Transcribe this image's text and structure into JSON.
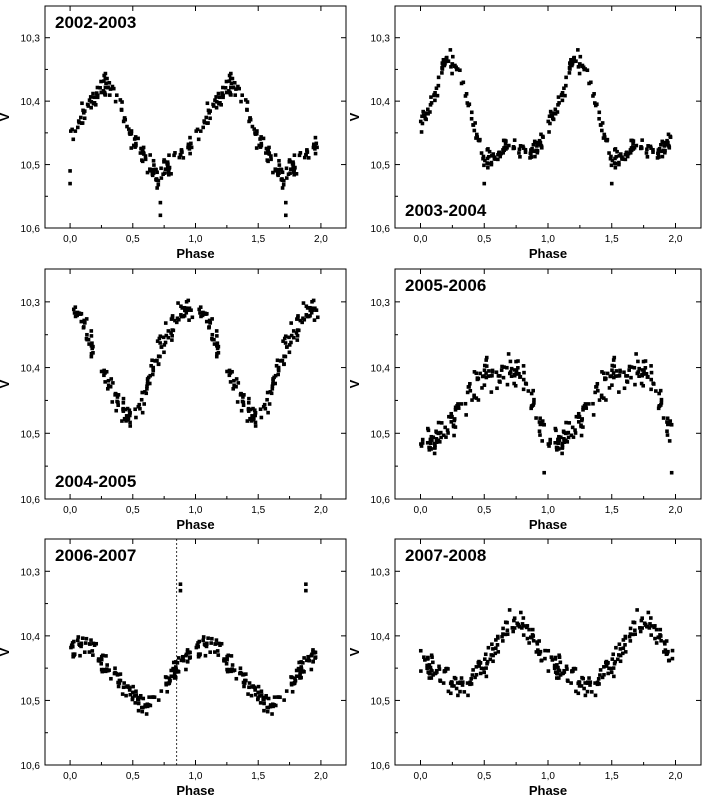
{
  "chart_data": [
    {
      "type": "scatter",
      "title": "2002-2003",
      "xlabel": "Phase",
      "ylabel": "V",
      "xlim": [
        -0.2,
        2.2
      ],
      "ylim": [
        10.6,
        10.25
      ],
      "x_ticks": [
        "0,0",
        "0,5",
        "1,0",
        "1,5",
        "2,0"
      ],
      "y_ticks": [
        "10,3",
        "10,4",
        "10,5",
        "10,6"
      ],
      "curve": [
        [
          0.0,
          10.46
        ],
        [
          0.1,
          10.42
        ],
        [
          0.2,
          10.39
        ],
        [
          0.3,
          10.37
        ],
        [
          0.4,
          10.41
        ],
        [
          0.5,
          10.46
        ],
        [
          0.6,
          10.49
        ],
        [
          0.7,
          10.52
        ],
        [
          0.8,
          10.5
        ],
        [
          0.9,
          10.48
        ],
        [
          1.0,
          10.46
        ]
      ],
      "scatter_amplitude": 0.025,
      "outliers": [
        [
          0.0,
          10.53
        ],
        [
          0.0,
          10.51
        ],
        [
          0.72,
          10.58
        ],
        [
          0.72,
          10.56
        ],
        [
          1.72,
          10.58
        ],
        [
          1.72,
          10.56
        ]
      ],
      "vline": null
    },
    {
      "type": "scatter",
      "title": "2003-2004",
      "xlabel": "Phase",
      "ylabel": "V",
      "xlim": [
        -0.2,
        2.2
      ],
      "ylim": [
        10.6,
        10.25
      ],
      "x_ticks": [
        "0,0",
        "0,5",
        "1,0",
        "1,5",
        "2,0"
      ],
      "y_ticks": [
        "10,3",
        "10,4",
        "10,5",
        "10,6"
      ],
      "curve": [
        [
          0.0,
          10.44
        ],
        [
          0.1,
          10.4
        ],
        [
          0.2,
          10.33
        ],
        [
          0.3,
          10.35
        ],
        [
          0.4,
          10.42
        ],
        [
          0.5,
          10.5
        ],
        [
          0.6,
          10.48
        ],
        [
          0.7,
          10.47
        ],
        [
          0.8,
          10.48
        ],
        [
          0.9,
          10.48
        ],
        [
          1.0,
          10.44
        ]
      ],
      "scatter_amplitude": 0.022,
      "outliers": [
        [
          0.5,
          10.53
        ],
        [
          1.5,
          10.53
        ]
      ],
      "vline": null
    },
    {
      "type": "scatter",
      "title": "2004-2005",
      "xlabel": "Phase",
      "ylabel": "V",
      "xlim": [
        -0.2,
        2.2
      ],
      "ylim": [
        10.6,
        10.25
      ],
      "x_ticks": [
        "0,0",
        "0,5",
        "1,0",
        "1,5",
        "2,0"
      ],
      "y_ticks": [
        "10,3",
        "10,4",
        "10,5",
        "10,6"
      ],
      "curve": [
        [
          0.0,
          10.31
        ],
        [
          0.1,
          10.33
        ],
        [
          0.2,
          10.38
        ],
        [
          0.3,
          10.42
        ],
        [
          0.4,
          10.46
        ],
        [
          0.5,
          10.49
        ],
        [
          0.6,
          10.44
        ],
        [
          0.7,
          10.38
        ],
        [
          0.8,
          10.34
        ],
        [
          0.9,
          10.31
        ],
        [
          1.0,
          10.31
        ]
      ],
      "scatter_amplitude": 0.028,
      "outliers": [],
      "vline": null
    },
    {
      "type": "scatter",
      "title": "2005-2006",
      "xlabel": "Phase",
      "ylabel": "V",
      "xlim": [
        -0.2,
        2.2
      ],
      "ylim": [
        10.6,
        10.25
      ],
      "x_ticks": [
        "0,0",
        "0,5",
        "1,0",
        "1,5",
        "2,0"
      ],
      "y_ticks": [
        "10,3",
        "10,4",
        "10,5",
        "10,6"
      ],
      "curve": [
        [
          0.0,
          10.51
        ],
        [
          0.1,
          10.51
        ],
        [
          0.2,
          10.49
        ],
        [
          0.3,
          10.47
        ],
        [
          0.4,
          10.43
        ],
        [
          0.5,
          10.41
        ],
        [
          0.6,
          10.41
        ],
        [
          0.7,
          10.4
        ],
        [
          0.8,
          10.41
        ],
        [
          0.9,
          10.47
        ],
        [
          1.0,
          10.51
        ]
      ],
      "scatter_amplitude": 0.035,
      "outliers": [
        [
          0.97,
          10.56
        ],
        [
          1.97,
          10.56
        ]
      ],
      "vline": null
    },
    {
      "type": "scatter",
      "title": "2006-2007",
      "xlabel": "Phase",
      "ylabel": "V",
      "xlim": [
        -0.2,
        2.2
      ],
      "ylim": [
        10.6,
        10.25
      ],
      "x_ticks": [
        "0,0",
        "0,5",
        "1,0",
        "1,5",
        "2,0"
      ],
      "y_ticks": [
        "10,3",
        "10,4",
        "10,5",
        "10,6"
      ],
      "curve": [
        [
          0.0,
          10.42
        ],
        [
          0.1,
          10.41
        ],
        [
          0.2,
          10.42
        ],
        [
          0.3,
          10.45
        ],
        [
          0.4,
          10.47
        ],
        [
          0.5,
          10.49
        ],
        [
          0.6,
          10.51
        ],
        [
          0.7,
          10.49
        ],
        [
          0.8,
          10.46
        ],
        [
          0.9,
          10.44
        ],
        [
          1.0,
          10.42
        ]
      ],
      "scatter_amplitude": 0.025,
      "outliers": [
        [
          0.88,
          10.32
        ],
        [
          0.88,
          10.33
        ],
        [
          1.88,
          10.32
        ],
        [
          1.88,
          10.33
        ]
      ],
      "vline": 0.85
    },
    {
      "type": "scatter",
      "title": "2007-2008",
      "xlabel": "Phase",
      "ylabel": "V",
      "xlim": [
        -0.2,
        2.2
      ],
      "ylim": [
        10.6,
        10.25
      ],
      "x_ticks": [
        "0,0",
        "0,5",
        "1,0",
        "1,5",
        "2,0"
      ],
      "y_ticks": [
        "10,3",
        "10,4",
        "10,5",
        "10,6"
      ],
      "curve": [
        [
          0.0,
          10.44
        ],
        [
          0.1,
          10.45
        ],
        [
          0.2,
          10.46
        ],
        [
          0.3,
          10.48
        ],
        [
          0.4,
          10.47
        ],
        [
          0.5,
          10.44
        ],
        [
          0.6,
          10.42
        ],
        [
          0.7,
          10.38
        ],
        [
          0.8,
          10.38
        ],
        [
          0.9,
          10.41
        ],
        [
          1.0,
          10.44
        ]
      ],
      "scatter_amplitude": 0.03,
      "outliers": [],
      "vline": null
    }
  ]
}
